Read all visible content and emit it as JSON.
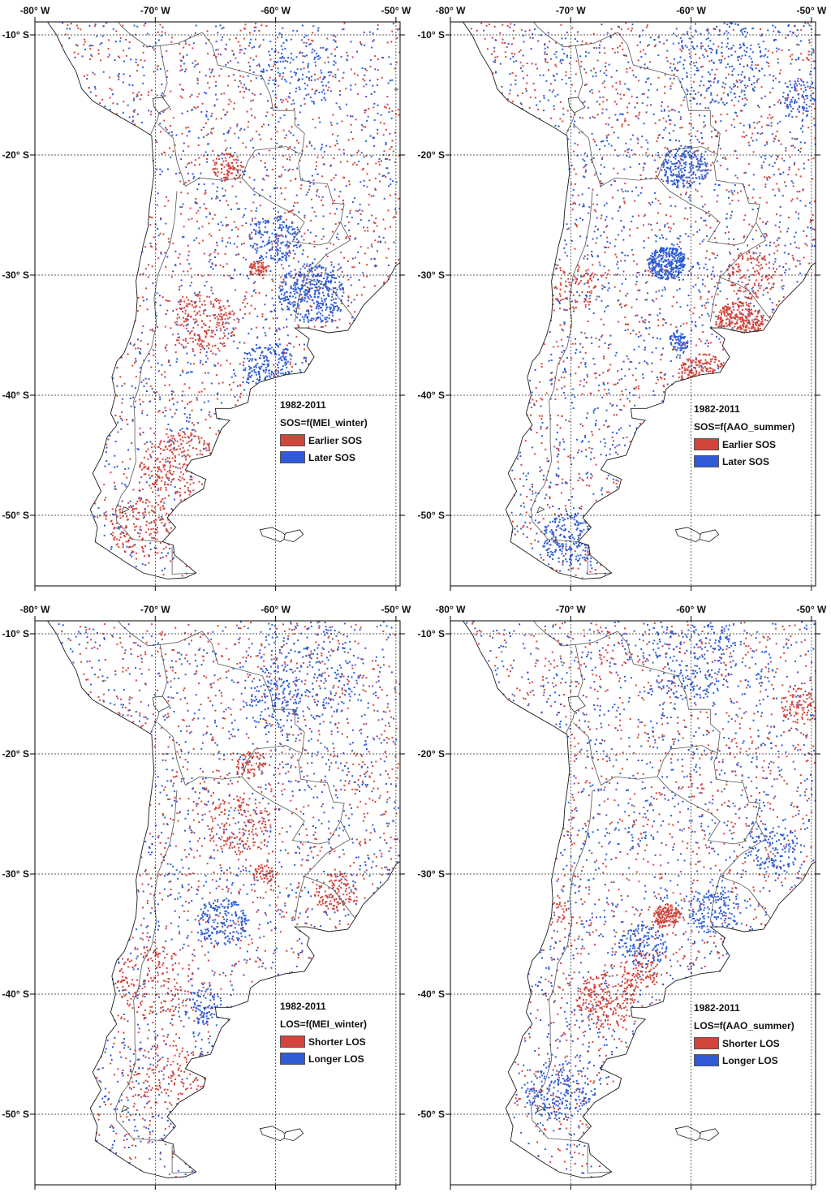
{
  "colors": {
    "earlier": "#d2443c",
    "later": "#2f5bd6",
    "coast": "#1a1a1a",
    "border": "#555555",
    "grid": "#222222"
  },
  "axes": {
    "lon_labels": [
      "-80° W",
      "-70° W",
      "-60° W",
      "-50° W"
    ],
    "lat_labels": [
      "-10° S",
      "-20° S",
      "-30° S",
      "-40° S",
      "-50° S"
    ],
    "lon_values": [
      -80,
      -70,
      -60,
      -50
    ],
    "lat_values": [
      -10,
      -20,
      -30,
      -40,
      -50
    ]
  },
  "panels": [
    {
      "period": "1982-2011",
      "formula": "SOS=f(MEI_winter)",
      "legend": [
        {
          "label": "Earlier SOS",
          "color": "#d2443c"
        },
        {
          "label": "Later SOS",
          "color": "#2f5bd6"
        }
      ]
    },
    {
      "period": "1982-2011",
      "formula": "SOS=f(AAO_summer)",
      "legend": [
        {
          "label": "Earlier SOS",
          "color": "#d2443c"
        },
        {
          "label": "Later SOS",
          "color": "#2f5bd6"
        }
      ]
    },
    {
      "period": "1982-2011",
      "formula": "LOS=f(MEI_winter)",
      "legend": [
        {
          "label": "Shorter LOS",
          "color": "#d2443c"
        },
        {
          "label": "Longer LOS",
          "color": "#2f5bd6"
        }
      ]
    },
    {
      "period": "1982-2011",
      "formula": "LOS=f(AAO_summer)",
      "legend": [
        {
          "label": "Shorter LOS",
          "color": "#d2443c"
        },
        {
          "label": "Longer LOS",
          "color": "#2f5bd6"
        }
      ]
    }
  ]
}
